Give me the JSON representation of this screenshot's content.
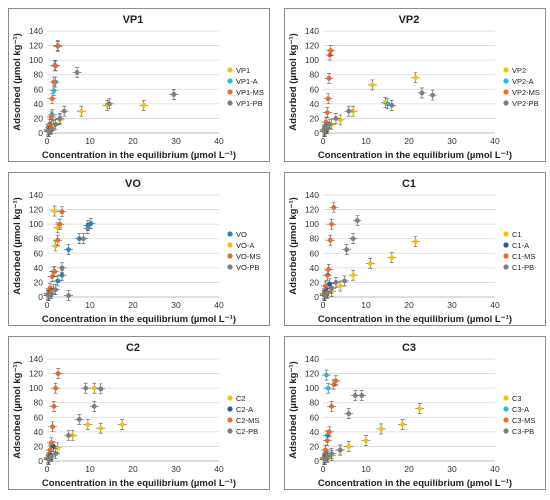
{
  "page": {
    "domain": "Chart"
  },
  "chart_data": [
    {
      "type": "scatter",
      "title": "VP1",
      "xlabel": "Concentration in the equilibrium (µmol L⁻¹)",
      "ylabel": "Adsorbed (µmol kg⁻¹)",
      "xlim": [
        0,
        40
      ],
      "ylim": [
        0,
        140
      ],
      "xticks": [
        "0",
        "10",
        "20",
        "30",
        "40"
      ],
      "yticks": [
        "0",
        "20",
        "40",
        "60",
        "80",
        "100",
        "120",
        "140"
      ],
      "legend_position": "right",
      "series": [
        {
          "name": "VP1",
          "color": "#f4c20d",
          "points": [
            [
              0.3,
              2
            ],
            [
              0.8,
              5
            ],
            [
              1.5,
              10
            ],
            [
              3,
              18
            ],
            [
              8,
              30
            ],
            [
              14,
              38
            ],
            [
              22.5,
              38
            ],
            [
              29.5,
              53
            ]
          ]
        },
        {
          "name": "VP1-A",
          "color": "#2eb8d8",
          "points": [
            [
              0.3,
              3
            ],
            [
              0.7,
              8
            ],
            [
              1.2,
              25
            ],
            [
              1.6,
              58
            ],
            [
              2,
              70
            ],
            [
              1.8,
              93
            ],
            [
              2.5,
              120
            ]
          ]
        },
        {
          "name": "VP1-MS",
          "color": "#ea6b2d",
          "points": [
            [
              0.3,
              5
            ],
            [
              0.6,
              12
            ],
            [
              1,
              22
            ],
            [
              1.2,
              47
            ],
            [
              1.6,
              70
            ],
            [
              2,
              92
            ],
            [
              2.5,
              119
            ]
          ]
        },
        {
          "name": "VP1-PB",
          "color": "#7f7f7f",
          "points": [
            [
              0.4,
              2
            ],
            [
              1,
              6
            ],
            [
              2,
              12
            ],
            [
              3,
              20
            ],
            [
              4,
              30
            ],
            [
              7,
              83
            ],
            [
              14.5,
              40
            ],
            [
              29.5,
              53
            ]
          ]
        }
      ]
    },
    {
      "type": "scatter",
      "title": "VP2",
      "xlabel": "Concentration in the equilibrium (µmol L⁻¹)",
      "ylabel": "Adsorbed (µmol kg⁻¹)",
      "xlim": [
        0,
        40
      ],
      "ylim": [
        0,
        140
      ],
      "xticks": [
        "0",
        "10",
        "20",
        "30",
        "40"
      ],
      "yticks": [
        "0",
        "20",
        "40",
        "60",
        "80",
        "100",
        "120",
        "140"
      ],
      "legend_position": "right",
      "series": [
        {
          "name": "VP2",
          "color": "#f4c20d",
          "points": [
            [
              0.4,
              2
            ],
            [
              1,
              6
            ],
            [
              2,
              12
            ],
            [
              4,
              18
            ],
            [
              7,
              30
            ],
            [
              11.5,
              66
            ],
            [
              14.5,
              42
            ],
            [
              21.5,
              76
            ]
          ]
        },
        {
          "name": "VP2-A",
          "color": "#2eb8d8",
          "points": [
            [
              0.3,
              3
            ],
            [
              0.8,
              8
            ],
            [
              15,
              40
            ]
          ]
        },
        {
          "name": "VP2-MS",
          "color": "#ea6b2d",
          "points": [
            [
              0.3,
              5
            ],
            [
              0.7,
              15
            ],
            [
              1,
              28
            ],
            [
              1.2,
              47
            ],
            [
              1.4,
              75
            ],
            [
              1.6,
              107
            ],
            [
              1.8,
              113
            ]
          ]
        },
        {
          "name": "VP2-PB",
          "color": "#7f7f7f",
          "points": [
            [
              0.3,
              2
            ],
            [
              0.8,
              6
            ],
            [
              1.5,
              12
            ],
            [
              3,
              20
            ],
            [
              6,
              30
            ],
            [
              16,
              38
            ],
            [
              23,
              55
            ],
            [
              25.5,
              52
            ]
          ]
        }
      ]
    },
    {
      "type": "scatter",
      "title": "VO",
      "xlabel": "Concentration in the equilibrium (µmol L⁻¹)",
      "ylabel": "Adsorbed (µmol kg⁻¹)",
      "xlim": [
        0,
        40
      ],
      "ylim": [
        0,
        140
      ],
      "xticks": [
        "0",
        "10",
        "20",
        "30",
        "40"
      ],
      "yticks": [
        "0",
        "20",
        "40",
        "60",
        "80",
        "100",
        "120",
        "140"
      ],
      "legend_position": "right",
      "series": [
        {
          "name": "VO",
          "color": "#2e83c4",
          "points": [
            [
              0.3,
              2
            ],
            [
              0.8,
              5
            ],
            [
              1.5,
              10
            ],
            [
              2.5,
              22
            ],
            [
              3.5,
              30
            ],
            [
              5,
              65
            ],
            [
              7.5,
              80
            ],
            [
              9.5,
              98
            ],
            [
              10.2,
              101
            ]
          ]
        },
        {
          "name": "VO-A",
          "color": "#f4c20d",
          "points": [
            [
              0.3,
              3
            ],
            [
              1,
              8
            ],
            [
              1.5,
              35
            ],
            [
              2,
              70
            ],
            [
              2.5,
              95
            ],
            [
              1.8,
              118
            ]
          ]
        },
        {
          "name": "VO-MS",
          "color": "#ea6b2d",
          "points": [
            [
              0.3,
              5
            ],
            [
              0.7,
              12
            ],
            [
              1.2,
              28
            ],
            [
              1.8,
              35
            ],
            [
              2.5,
              78
            ],
            [
              3,
              100
            ],
            [
              3.5,
              117
            ]
          ]
        },
        {
          "name": "VO-PB",
          "color": "#7f7f7f",
          "points": [
            [
              0.3,
              2
            ],
            [
              1,
              5
            ],
            [
              2,
              10
            ],
            [
              3.5,
              40
            ],
            [
              5,
              2
            ],
            [
              8.5,
              80
            ],
            [
              9.5,
              94
            ]
          ]
        }
      ]
    },
    {
      "type": "scatter",
      "title": "C1",
      "xlabel": "Concentration in the equilibrium (µmol L⁻¹)",
      "ylabel": "Adsorbed (µmol kg⁻¹)",
      "xlim": [
        0,
        40
      ],
      "ylim": [
        0,
        140
      ],
      "xticks": [
        "0",
        "10",
        "20",
        "30",
        "40"
      ],
      "yticks": [
        "0",
        "20",
        "40",
        "60",
        "80",
        "100",
        "120",
        "140"
      ],
      "legend_position": "right",
      "series": [
        {
          "name": "C1",
          "color": "#f4c20d",
          "points": [
            [
              0.3,
              2
            ],
            [
              1,
              5
            ],
            [
              2,
              8
            ],
            [
              4,
              15
            ],
            [
              7,
              30
            ],
            [
              11,
              46
            ],
            [
              16,
              54
            ],
            [
              21.5,
              76
            ]
          ]
        },
        {
          "name": "C1-A",
          "color": "#1f5fa0",
          "points": [
            [
              0.3,
              3
            ],
            [
              0.8,
              8
            ],
            [
              1.5,
              18
            ]
          ]
        },
        {
          "name": "C1-MS",
          "color": "#ea6b2d",
          "points": [
            [
              0.3,
              5
            ],
            [
              0.6,
              15
            ],
            [
              1,
              30
            ],
            [
              1.3,
              38
            ],
            [
              1.7,
              78
            ],
            [
              2,
              100
            ],
            [
              2.5,
              123
            ]
          ]
        },
        {
          "name": "C1-PB",
          "color": "#7f7f7f",
          "points": [
            [
              0.4,
              2
            ],
            [
              1,
              6
            ],
            [
              2,
              12
            ],
            [
              3,
              20
            ],
            [
              5,
              22
            ],
            [
              5.5,
              65
            ],
            [
              7,
              80
            ],
            [
              8,
              105
            ]
          ]
        }
      ]
    },
    {
      "type": "scatter",
      "title": "C2",
      "xlabel": "Concentration in the equilibrium (µmol L⁻¹)",
      "ylabel": "Adsorbed (µmol kg⁻¹)",
      "xlim": [
        0,
        40
      ],
      "ylim": [
        0,
        140
      ],
      "xticks": [
        "0",
        "10",
        "20",
        "30",
        "40"
      ],
      "yticks": [
        "0",
        "20",
        "40",
        "60",
        "80",
        "100",
        "120",
        "140"
      ],
      "legend_position": "right",
      "series": [
        {
          "name": "C2",
          "color": "#f4c20d",
          "points": [
            [
              0.3,
              2
            ],
            [
              1,
              8
            ],
            [
              2.5,
              18
            ],
            [
              6,
              35
            ],
            [
              9.5,
              50
            ],
            [
              12.5,
              45
            ],
            [
              17.5,
              50
            ],
            [
              11,
              100
            ]
          ]
        },
        {
          "name": "C2-A",
          "color": "#1f5fa0",
          "points": [
            [
              0.3,
              3
            ],
            [
              0.8,
              8
            ],
            [
              1.5,
              20
            ]
          ]
        },
        {
          "name": "C2-MS",
          "color": "#ea6b2d",
          "points": [
            [
              0.3,
              5
            ],
            [
              0.7,
              15
            ],
            [
              1,
              25
            ],
            [
              1.3,
              47
            ],
            [
              1.6,
              75
            ],
            [
              2,
              100
            ],
            [
              2.6,
              120
            ]
          ]
        },
        {
          "name": "C2-PB",
          "color": "#7f7f7f",
          "points": [
            [
              0.4,
              2
            ],
            [
              1,
              6
            ],
            [
              2,
              10
            ],
            [
              5,
              35
            ],
            [
              7.5,
              57
            ],
            [
              9,
              100
            ],
            [
              11,
              75
            ],
            [
              12.5,
              99
            ]
          ]
        }
      ]
    },
    {
      "type": "scatter",
      "title": "C3",
      "xlabel": "Concentration in the equilibrium (µmol L⁻¹)",
      "ylabel": "Adsorbed (µmol kg⁻¹)",
      "xlim": [
        0,
        40
      ],
      "ylim": [
        0,
        140
      ],
      "xticks": [
        "0",
        "10",
        "20",
        "30",
        "40"
      ],
      "yticks": [
        "0",
        "20",
        "40",
        "60",
        "80",
        "100",
        "120",
        "140"
      ],
      "legend_position": "right",
      "series": [
        {
          "name": "C3",
          "color": "#f4c20d",
          "points": [
            [
              0.3,
              2
            ],
            [
              1,
              5
            ],
            [
              2,
              8
            ],
            [
              4,
              15
            ],
            [
              6,
              20
            ],
            [
              10,
              28
            ],
            [
              13.5,
              44
            ],
            [
              18.5,
              50
            ],
            [
              22.5,
              72
            ]
          ]
        },
        {
          "name": "C3-A",
          "color": "#2eb8d8",
          "points": [
            [
              0.3,
              3
            ],
            [
              0.8,
              8
            ],
            [
              1,
              35
            ],
            [
              1.2,
              100
            ],
            [
              0.8,
              118
            ]
          ]
        },
        {
          "name": "C3-MS",
          "color": "#ea6b2d",
          "points": [
            [
              0.3,
              5
            ],
            [
              0.6,
              15
            ],
            [
              1,
              28
            ],
            [
              1.5,
              40
            ],
            [
              2,
              75
            ],
            [
              2.5,
              105
            ],
            [
              3,
              110
            ]
          ]
        },
        {
          "name": "C3-PB",
          "color": "#7f7f7f",
          "points": [
            [
              0.4,
              2
            ],
            [
              1,
              6
            ],
            [
              2,
              10
            ],
            [
              4,
              15
            ],
            [
              6,
              65
            ],
            [
              7.5,
              90
            ],
            [
              9,
              90
            ]
          ]
        }
      ]
    }
  ]
}
